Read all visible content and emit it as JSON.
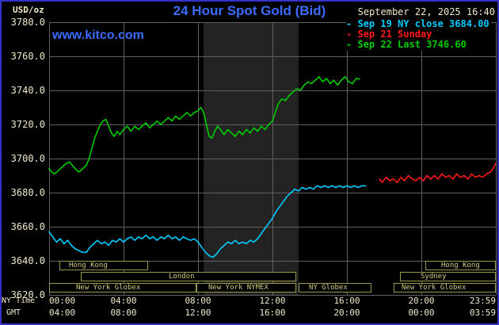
{
  "colors": {
    "background": "#000000",
    "frame_border": "#3333cc",
    "title_blue": "#3b6cff",
    "cream": "#f0e8c8",
    "grid": "#606060",
    "nymex_band": "#232323",
    "session_border": "#98984a",
    "session_text": "#d4c87c"
  },
  "header": {
    "units": "USD/oz",
    "title": "24 Hour Spot Gold (Bid)",
    "datetime": "September 22, 2025 16:40",
    "watermark": "www.kitco.com"
  },
  "legend_bullet": "-",
  "legend": [
    {
      "text": "Sep 19 NY close 3684.00",
      "color": "#00ccff"
    },
    {
      "text": "Sep 21 Sunday",
      "color": "#ff1a1a"
    },
    {
      "text": "Sep 22 Last 3746.60",
      "color": "#00cc00"
    }
  ],
  "axes": {
    "y_ticks": [
      "3780.0",
      "3760.0",
      "3740.0",
      "3720.0",
      "3700.0",
      "3680.0",
      "3660.0",
      "3640.0",
      "3620.0"
    ],
    "x_rows": [
      {
        "label": "NY Time",
        "ticks": [
          "00:00",
          "04:00",
          "08:00",
          "12:00",
          "16:00",
          "20:00",
          "23:59"
        ]
      },
      {
        "label": "GMT",
        "ticks": [
          "04:00",
          "08:00",
          "12:00",
          "16:00",
          "20:00",
          "00:00",
          "03:59"
        ]
      }
    ]
  },
  "chart_data": {
    "type": "line",
    "title": "24 Hour Spot Gold (Bid)",
    "ylabel": "USD/oz",
    "ylim": [
      3620,
      3780
    ],
    "y_tick_step": 20,
    "xlim": [
      0,
      24
    ],
    "x_unit": "hours, NY time",
    "x_tick_step_hours": 4,
    "grid": true,
    "legend_position": "top-right",
    "nymex_band_hours": [
      8.3,
      13.4
    ],
    "series": [
      {
        "key": "sep19-ny-close",
        "name": "Sep 19 NY close",
        "close_value": 3684.0,
        "color": "#00ccff",
        "points": [
          [
            0,
            3657
          ],
          [
            0.2,
            3654
          ],
          [
            0.4,
            3651
          ],
          [
            0.6,
            3653
          ],
          [
            0.8,
            3650
          ],
          [
            1.0,
            3652
          ],
          [
            1.2,
            3649
          ],
          [
            1.4,
            3647
          ],
          [
            1.6,
            3646
          ],
          [
            1.8,
            3645
          ],
          [
            2.0,
            3645
          ],
          [
            2.2,
            3648
          ],
          [
            2.4,
            3650
          ],
          [
            2.6,
            3652
          ],
          [
            2.8,
            3650
          ],
          [
            3.0,
            3651
          ],
          [
            3.2,
            3649
          ],
          [
            3.4,
            3652
          ],
          [
            3.6,
            3651
          ],
          [
            3.8,
            3653
          ],
          [
            4.0,
            3651
          ],
          [
            4.2,
            3653
          ],
          [
            4.4,
            3654
          ],
          [
            4.6,
            3652
          ],
          [
            4.8,
            3654
          ],
          [
            5.0,
            3653
          ],
          [
            5.2,
            3655
          ],
          [
            5.4,
            3653
          ],
          [
            5.6,
            3654
          ],
          [
            5.8,
            3652
          ],
          [
            6.0,
            3654
          ],
          [
            6.2,
            3653
          ],
          [
            6.4,
            3655
          ],
          [
            6.6,
            3653
          ],
          [
            6.8,
            3654
          ],
          [
            7.0,
            3652
          ],
          [
            7.2,
            3654
          ],
          [
            7.4,
            3653
          ],
          [
            7.6,
            3652
          ],
          [
            7.8,
            3653
          ],
          [
            8.0,
            3651
          ],
          [
            8.2,
            3648
          ],
          [
            8.4,
            3645
          ],
          [
            8.6,
            3643
          ],
          [
            8.8,
            3642
          ],
          [
            9.0,
            3644
          ],
          [
            9.2,
            3647
          ],
          [
            9.4,
            3649
          ],
          [
            9.6,
            3651
          ],
          [
            9.8,
            3650
          ],
          [
            10.0,
            3652
          ],
          [
            10.2,
            3650
          ],
          [
            10.4,
            3651
          ],
          [
            10.6,
            3650
          ],
          [
            10.8,
            3652
          ],
          [
            11.0,
            3651
          ],
          [
            11.2,
            3653
          ],
          [
            11.4,
            3656
          ],
          [
            11.6,
            3659
          ],
          [
            11.8,
            3662
          ],
          [
            12.0,
            3665
          ],
          [
            12.2,
            3669
          ],
          [
            12.4,
            3672
          ],
          [
            12.6,
            3675
          ],
          [
            12.8,
            3678
          ],
          [
            13.0,
            3680
          ],
          [
            13.2,
            3682
          ],
          [
            13.4,
            3681
          ],
          [
            13.6,
            3683
          ],
          [
            13.8,
            3682
          ],
          [
            14.0,
            3683
          ],
          [
            14.2,
            3682
          ],
          [
            14.4,
            3684
          ],
          [
            14.6,
            3683
          ],
          [
            14.8,
            3684
          ],
          [
            15.0,
            3683
          ],
          [
            15.2,
            3684
          ],
          [
            15.4,
            3683
          ],
          [
            15.6,
            3684
          ],
          [
            15.8,
            3683
          ],
          [
            16.0,
            3684
          ],
          [
            16.2,
            3683
          ],
          [
            16.4,
            3684
          ],
          [
            16.6,
            3683
          ],
          [
            16.8,
            3684
          ],
          [
            17.0,
            3684
          ]
        ]
      },
      {
        "key": "sep21-sunday",
        "name": "Sep 21 Sunday",
        "color": "#ff1a1a",
        "points": [
          [
            17.75,
            3688
          ],
          [
            17.9,
            3686
          ],
          [
            18.1,
            3689
          ],
          [
            18.3,
            3687
          ],
          [
            18.5,
            3688
          ],
          [
            18.7,
            3686
          ],
          [
            18.9,
            3689
          ],
          [
            19.1,
            3687
          ],
          [
            19.3,
            3690
          ],
          [
            19.5,
            3688
          ],
          [
            19.7,
            3687
          ],
          [
            19.9,
            3689
          ],
          [
            20.1,
            3687
          ],
          [
            20.3,
            3690
          ],
          [
            20.5,
            3688
          ],
          [
            20.7,
            3690
          ],
          [
            20.9,
            3688
          ],
          [
            21.1,
            3691
          ],
          [
            21.3,
            3689
          ],
          [
            21.5,
            3690
          ],
          [
            21.7,
            3688
          ],
          [
            21.9,
            3691
          ],
          [
            22.1,
            3689
          ],
          [
            22.3,
            3690
          ],
          [
            22.5,
            3688
          ],
          [
            22.7,
            3691
          ],
          [
            22.9,
            3689
          ],
          [
            23.1,
            3690
          ],
          [
            23.3,
            3689
          ],
          [
            23.5,
            3691
          ],
          [
            23.7,
            3692
          ],
          [
            23.85,
            3694
          ],
          [
            23.98,
            3697
          ]
        ]
      },
      {
        "key": "sep22-today",
        "name": "Sep 22 Last",
        "last_value": 3746.6,
        "color": "#00cc00",
        "points": [
          [
            0,
            3694
          ],
          [
            0.15,
            3692
          ],
          [
            0.3,
            3691
          ],
          [
            0.5,
            3693
          ],
          [
            0.7,
            3695
          ],
          [
            0.9,
            3697
          ],
          [
            1.1,
            3698
          ],
          [
            1.25,
            3696
          ],
          [
            1.4,
            3694
          ],
          [
            1.6,
            3692
          ],
          [
            1.8,
            3694
          ],
          [
            2.0,
            3696
          ],
          [
            2.15,
            3700
          ],
          [
            2.3,
            3706
          ],
          [
            2.45,
            3712
          ],
          [
            2.6,
            3716
          ],
          [
            2.75,
            3720
          ],
          [
            2.9,
            3722
          ],
          [
            3.05,
            3723
          ],
          [
            3.2,
            3719
          ],
          [
            3.35,
            3715
          ],
          [
            3.5,
            3713
          ],
          [
            3.65,
            3716
          ],
          [
            3.8,
            3714
          ],
          [
            4.0,
            3717
          ],
          [
            4.2,
            3719
          ],
          [
            4.4,
            3716
          ],
          [
            4.6,
            3719
          ],
          [
            4.8,
            3717
          ],
          [
            5.0,
            3719
          ],
          [
            5.2,
            3721
          ],
          [
            5.4,
            3718
          ],
          [
            5.6,
            3720
          ],
          [
            5.8,
            3722
          ],
          [
            6.0,
            3720
          ],
          [
            6.2,
            3722
          ],
          [
            6.4,
            3724
          ],
          [
            6.6,
            3722
          ],
          [
            6.8,
            3725
          ],
          [
            7.0,
            3723
          ],
          [
            7.2,
            3725
          ],
          [
            7.4,
            3727
          ],
          [
            7.6,
            3725
          ],
          [
            7.8,
            3727
          ],
          [
            8.0,
            3728
          ],
          [
            8.15,
            3730
          ],
          [
            8.3,
            3727
          ],
          [
            8.45,
            3720
          ],
          [
            8.6,
            3713
          ],
          [
            8.75,
            3712
          ],
          [
            8.9,
            3716
          ],
          [
            9.05,
            3719
          ],
          [
            9.2,
            3717
          ],
          [
            9.4,
            3714
          ],
          [
            9.6,
            3717
          ],
          [
            9.8,
            3715
          ],
          [
            10.0,
            3713
          ],
          [
            10.2,
            3716
          ],
          [
            10.4,
            3714
          ],
          [
            10.6,
            3717
          ],
          [
            10.8,
            3715
          ],
          [
            11.0,
            3718
          ],
          [
            11.2,
            3716
          ],
          [
            11.4,
            3719
          ],
          [
            11.6,
            3717
          ],
          [
            11.8,
            3720
          ],
          [
            12.0,
            3722
          ],
          [
            12.15,
            3727
          ],
          [
            12.3,
            3732
          ],
          [
            12.5,
            3735
          ],
          [
            12.7,
            3734
          ],
          [
            12.9,
            3737
          ],
          [
            13.1,
            3739
          ],
          [
            13.3,
            3741
          ],
          [
            13.5,
            3740
          ],
          [
            13.7,
            3743
          ],
          [
            13.9,
            3745
          ],
          [
            14.1,
            3744
          ],
          [
            14.3,
            3746
          ],
          [
            14.5,
            3748
          ],
          [
            14.7,
            3745
          ],
          [
            14.9,
            3747
          ],
          [
            15.1,
            3744
          ],
          [
            15.3,
            3746
          ],
          [
            15.5,
            3743
          ],
          [
            15.7,
            3746
          ],
          [
            15.9,
            3748
          ],
          [
            16.1,
            3745
          ],
          [
            16.3,
            3744
          ],
          [
            16.5,
            3747
          ],
          [
            16.67,
            3746.6
          ]
        ]
      }
    ],
    "sessions": [
      {
        "row": 0,
        "label": "Hong Kong",
        "start_h": 0.55,
        "end_h": 5.3,
        "label_h": 1.0
      },
      {
        "row": 0,
        "label": "Hong Kong",
        "start_h": 20.2,
        "end_h": 24,
        "label_h": 21.0
      },
      {
        "row": 1,
        "label": "London",
        "start_h": 1.7,
        "end_h": 13.28,
        "label_h": 6.4
      },
      {
        "row": 1,
        "label": "Sydney",
        "start_h": 18.85,
        "end_h": 24,
        "label_h": 19.9
      },
      {
        "row": 2,
        "label": "New York Globex",
        "start_h": 0.0,
        "end_h": 7.9,
        "label_h": 1.4
      },
      {
        "row": 2,
        "label": "New York NYMEX",
        "start_h": 7.9,
        "end_h": 13.28,
        "label_h": 8.5
      },
      {
        "row": 2,
        "label": "NY Globex",
        "start_h": 13.4,
        "end_h": 17.3,
        "label_h": 13.9
      },
      {
        "row": 2,
        "label": "New York Globex",
        "start_h": 18.5,
        "end_h": 24,
        "label_h": 18.9
      }
    ]
  }
}
